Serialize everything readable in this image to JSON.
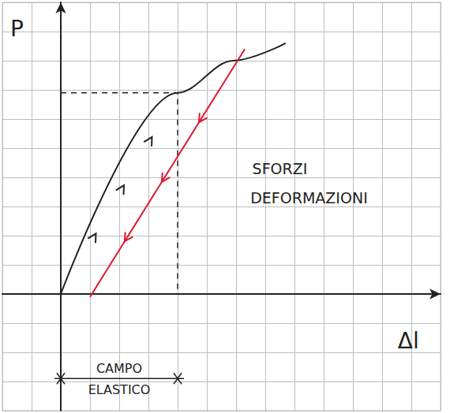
{
  "chart_data": {
    "type": "line",
    "x_label": "Δl",
    "y_label": "P",
    "annotations": [
      "SFORZI DEFORMAZIONI",
      "CAMPO ELASTICO"
    ],
    "series": [
      {
        "type": "line",
        "color": "#222222",
        "line_style": "solid",
        "marker": "arrow",
        "values": [
          [
            0,
            0
          ],
          [
            4.0,
            6.9
          ],
          [
            5.9,
            8.0
          ],
          [
            7.7,
            8.6
          ]
        ]
      },
      {
        "type": "line",
        "color": "#e0182d",
        "line_style": "solid",
        "marker": "arrow",
        "values": [
          [
            6.3,
            8.4
          ],
          [
            1.0,
            -0.1
          ]
        ]
      },
      {
        "type": "line",
        "color": "#222222",
        "line_style": "dashed",
        "values": [
          [
            0,
            6.9
          ],
          [
            4.0,
            6.9
          ],
          [
            4.0,
            0
          ]
        ]
      }
    ],
    "xlim": [
      -2,
      13
    ],
    "ylim": [
      -4,
      10
    ],
    "xticks": [
      -2,
      -1,
      0,
      1,
      2,
      3,
      4,
      5,
      6,
      7,
      8,
      9,
      10,
      11,
      12,
      13
    ],
    "yticks": [
      -4,
      -3,
      -2,
      -1,
      0,
      1,
      2,
      3,
      4,
      5,
      6,
      7,
      8,
      9,
      10
    ],
    "grid": true,
    "tick_labels": false
  }
}
